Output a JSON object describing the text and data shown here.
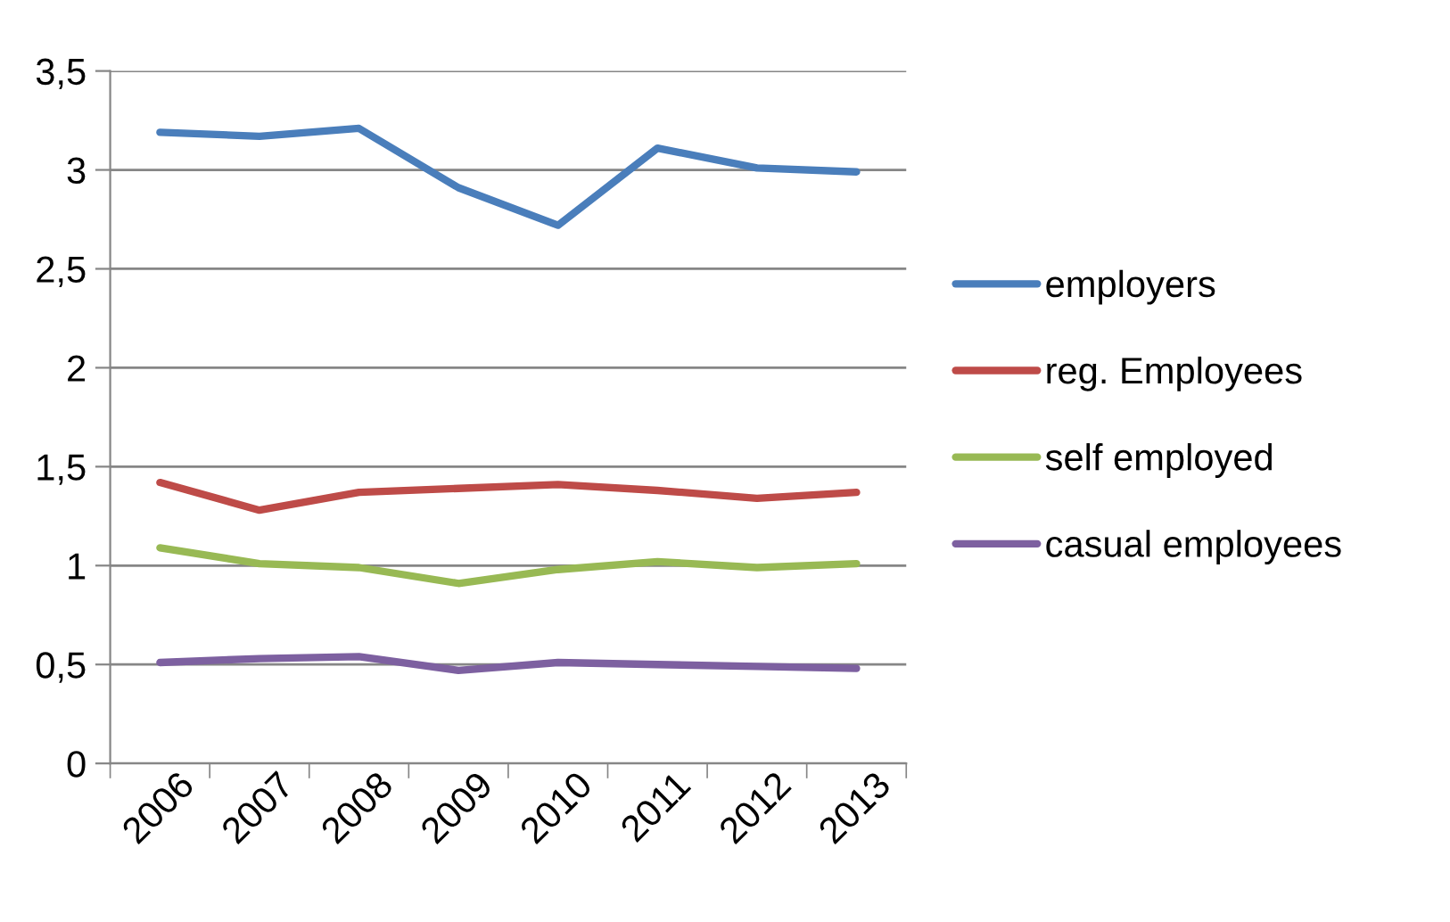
{
  "chart_data": {
    "type": "line",
    "categories": [
      "2006",
      "2007",
      "2008",
      "2009",
      "2010",
      "2011",
      "2012",
      "2013"
    ],
    "series": [
      {
        "name": "employers",
        "color": "#4a7ebb",
        "values": [
          3.19,
          3.17,
          3.21,
          2.91,
          2.72,
          3.11,
          3.01,
          2.99
        ]
      },
      {
        "name": "reg. Employees",
        "color": "#be4b48",
        "values": [
          1.42,
          1.28,
          1.37,
          1.39,
          1.41,
          1.38,
          1.34,
          1.37
        ]
      },
      {
        "name": "self employed",
        "color": "#98b954",
        "values": [
          1.09,
          1.01,
          0.99,
          0.91,
          0.98,
          1.02,
          0.99,
          1.01
        ]
      },
      {
        "name": "casual employees",
        "color": "#7d60a0",
        "values": [
          0.51,
          0.53,
          0.54,
          0.47,
          0.51,
          0.5,
          0.49,
          0.48
        ]
      }
    ],
    "ylim": [
      0,
      3.5
    ],
    "yticks": [
      0,
      {
        "value": 0.5,
        "label": "0,5"
      },
      1,
      {
        "value": 1.5,
        "label": "1,5"
      },
      2,
      {
        "value": 2.5,
        "label": "2,5"
      },
      3,
      {
        "value": 3.5,
        "label": "3,5"
      }
    ],
    "grid": "y",
    "legend": "right",
    "marker": "none",
    "line_style": "solid"
  }
}
